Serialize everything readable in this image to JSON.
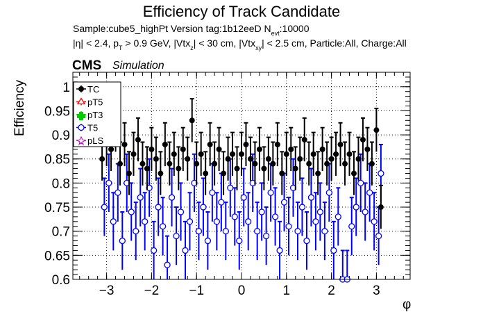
{
  "header": {
    "title": "Efficiency of Track Candidate",
    "sample_line": {
      "text": "Sample:cube5_highPt   Version tag:1b12eeD  N",
      "sub": "evt",
      "tail": ":10000"
    },
    "cuts_line": {
      "a": "|η| < 2.4, p",
      "a_sub": "T",
      "b": " > 0.9 GeV, |Vtx",
      "b_sub": "z",
      "c": "| < 30 cm, |Vtx",
      "c_sub": "xy",
      "d": "| < 2.5 cm, Particle:All, Charge:All"
    },
    "cms": "CMS",
    "simulation": "Simulation"
  },
  "colors": {
    "TC": "#000000",
    "pT5": "#ff0000",
    "pT3": "#00cc00",
    "T5": "#0000ff",
    "pLS": "#cc00cc"
  },
  "chart_data": {
    "type": "scatter",
    "title": "Efficiency of Track Candidate",
    "xlabel": "φ",
    "ylabel": "Efficiency",
    "xlim": [
      -3.75,
      3.75
    ],
    "ylim": [
      0.6,
      1.03
    ],
    "x_ticks": [
      -3,
      -2,
      -1,
      0,
      1,
      2,
      3
    ],
    "y_ticks": [
      0.6,
      0.65,
      0.7,
      0.75,
      0.8,
      0.85,
      0.9,
      0.95,
      1.0
    ],
    "y_tick_labels": [
      "0.6",
      "0.65",
      "0.7",
      "0.75",
      "0.8",
      "0.85",
      "0.9",
      "0.95",
      "1"
    ],
    "x_tick_labels": [
      "−3",
      "−2",
      "−1",
      "0",
      "1",
      "2",
      "3"
    ],
    "grid": true,
    "legend_position": "top-left",
    "legend": [
      "TC",
      "pT5",
      "pT3",
      "T5",
      "pLS"
    ],
    "series": [
      {
        "name": "TC",
        "marker": "filled-circle",
        "x": [
          -3.1,
          -3.0,
          -2.9,
          -2.8,
          -2.7,
          -2.6,
          -2.5,
          -2.4,
          -2.3,
          -2.2,
          -2.1,
          -2.0,
          -1.9,
          -1.8,
          -1.7,
          -1.6,
          -1.5,
          -1.4,
          -1.3,
          -1.2,
          -1.1,
          -1.0,
          -0.9,
          -0.8,
          -0.7,
          -0.6,
          -0.5,
          -0.4,
          -0.3,
          -0.2,
          -0.1,
          0.0,
          0.1,
          0.2,
          0.3,
          0.4,
          0.5,
          0.6,
          0.7,
          0.8,
          0.9,
          1.0,
          1.1,
          1.2,
          1.3,
          1.4,
          1.5,
          1.6,
          1.7,
          1.8,
          1.9,
          2.0,
          2.1,
          2.2,
          2.3,
          2.4,
          2.5,
          2.6,
          2.7,
          2.8,
          2.9,
          3.0,
          3.1
        ],
        "y": [
          0.85,
          0.88,
          0.87,
          0.91,
          0.84,
          0.88,
          0.82,
          0.86,
          0.89,
          0.84,
          0.83,
          0.87,
          0.85,
          0.82,
          0.88,
          0.84,
          0.86,
          0.83,
          0.87,
          0.85,
          0.93,
          0.84,
          0.86,
          0.82,
          0.88,
          0.84,
          0.87,
          0.82,
          0.85,
          0.86,
          0.83,
          0.86,
          0.88,
          0.85,
          0.84,
          0.87,
          0.83,
          0.85,
          0.84,
          0.88,
          0.82,
          0.86,
          0.87,
          0.83,
          0.85,
          0.89,
          0.84,
          0.86,
          0.82,
          0.87,
          0.84,
          0.85,
          0.86,
          0.88,
          0.84,
          0.86,
          0.82,
          0.85,
          0.89,
          0.87,
          0.84,
          0.91,
          0.75
        ],
        "err": 0.045
      },
      {
        "name": "T5",
        "marker": "open-circle",
        "x": [
          -3.05,
          -2.95,
          -2.85,
          -2.75,
          -2.65,
          -2.55,
          -2.45,
          -2.35,
          -2.25,
          -2.15,
          -2.05,
          -1.95,
          -1.85,
          -1.75,
          -1.65,
          -1.55,
          -1.45,
          -1.35,
          -1.25,
          -1.15,
          -1.05,
          -0.95,
          -0.85,
          -0.75,
          -0.65,
          -0.55,
          -0.45,
          -0.35,
          -0.25,
          -0.15,
          -0.05,
          0.05,
          0.15,
          0.25,
          0.35,
          0.45,
          0.55,
          0.65,
          0.75,
          0.85,
          0.95,
          1.05,
          1.15,
          1.25,
          1.35,
          1.45,
          1.55,
          1.65,
          1.75,
          1.85,
          1.95,
          2.05,
          2.15,
          2.25,
          2.35,
          2.45,
          2.55,
          2.65,
          2.75,
          2.85,
          2.95,
          3.05,
          3.1
        ],
        "y": [
          0.75,
          0.8,
          0.72,
          0.78,
          0.68,
          0.8,
          0.74,
          0.7,
          0.77,
          0.72,
          0.79,
          0.66,
          0.75,
          0.71,
          0.63,
          0.77,
          0.69,
          0.74,
          0.66,
          0.72,
          0.8,
          0.7,
          0.75,
          0.68,
          0.78,
          0.72,
          0.76,
          0.7,
          0.79,
          0.73,
          0.68,
          0.77,
          0.72,
          0.8,
          0.7,
          0.74,
          0.69,
          0.78,
          0.73,
          0.66,
          0.76,
          0.71,
          0.79,
          0.7,
          0.75,
          0.68,
          0.77,
          0.72,
          0.74,
          0.7,
          0.78,
          0.66,
          0.73,
          0.6,
          0.6,
          0.71,
          0.75,
          0.8,
          0.74,
          0.78,
          0.72,
          0.69,
          0.82
        ],
        "err": 0.06
      },
      {
        "name": "pT5",
        "marker": "open-triangle",
        "x": [],
        "y": []
      },
      {
        "name": "pT3",
        "marker": "cross",
        "x": [],
        "y": []
      },
      {
        "name": "pLS",
        "marker": "star",
        "x": [],
        "y": []
      }
    ]
  }
}
